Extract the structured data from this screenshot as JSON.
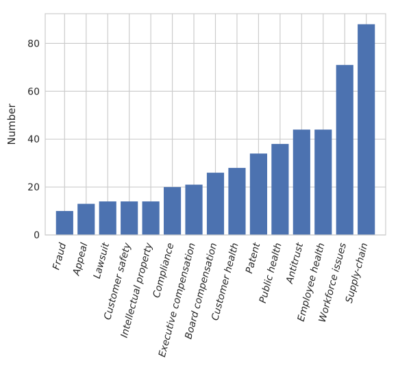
{
  "chart_data": {
    "type": "bar",
    "categories": [
      "Fraud",
      "Appeal",
      "Lawsuit",
      "Customer safety",
      "Intellectual property",
      "Compliance",
      "Executive compensation",
      "Board compensation",
      "Customer health",
      "Patent",
      "Public health",
      "Antitrust",
      "Employee health",
      "Workforce issues",
      "Supply-chain"
    ],
    "values": [
      10,
      13,
      14,
      14,
      14,
      20,
      21,
      26,
      28,
      34,
      38,
      44,
      44,
      71,
      88
    ],
    "title": "",
    "xlabel": "",
    "ylabel": "Number",
    "ylim": [
      0,
      92.4
    ],
    "yticks": [
      0,
      20,
      40,
      60,
      80
    ],
    "grid": true,
    "bar_color": "#4c72b0",
    "grid_color": "#cccccc"
  }
}
